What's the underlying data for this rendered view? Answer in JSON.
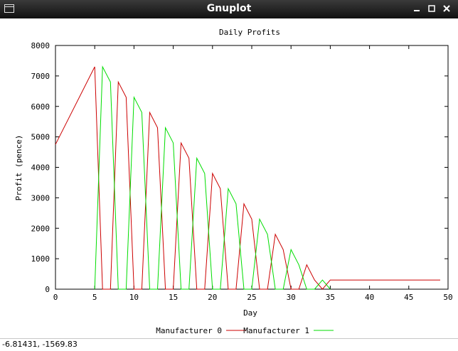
{
  "window": {
    "title": "Gnuplot",
    "controls": [
      {
        "name": "minimize",
        "icon": "minimize-icon"
      },
      {
        "name": "maximize",
        "icon": "maximize-icon"
      },
      {
        "name": "close",
        "icon": "close-icon"
      }
    ]
  },
  "status": {
    "coordinates": "-6.81431, -1569.83"
  },
  "chart_data": {
    "type": "line",
    "title": "Daily Profits",
    "xlabel": "Day",
    "ylabel": "Profit (pence)",
    "xlim": [
      0,
      50
    ],
    "ylim": [
      0,
      8000
    ],
    "xticks": [
      0,
      5,
      10,
      15,
      20,
      25,
      30,
      35,
      40,
      45,
      50
    ],
    "yticks": [
      0,
      1000,
      2000,
      3000,
      4000,
      5000,
      6000,
      7000,
      8000
    ],
    "grid": false,
    "legend_position": "bottom-center",
    "series": [
      {
        "name": "Manufacturer 0",
        "color": "#cc0000",
        "x": [
          0,
          5,
          6,
          7,
          8,
          9,
          10,
          11,
          12,
          13,
          14,
          15,
          16,
          17,
          18,
          19,
          20,
          21,
          22,
          23,
          24,
          25,
          26,
          27,
          28,
          29,
          30,
          31,
          32,
          33,
          34,
          35,
          40,
          45,
          49
        ],
        "y": [
          4750,
          7300,
          0,
          0,
          6800,
          6300,
          0,
          0,
          5800,
          5300,
          0,
          0,
          4800,
          4300,
          0,
          0,
          3800,
          3300,
          0,
          0,
          2800,
          2300,
          0,
          0,
          1800,
          1300,
          0,
          0,
          800,
          300,
          0,
          300,
          300,
          300,
          300
        ]
      },
      {
        "name": "Manufacturer 1",
        "color": "#00dd00",
        "x": [
          5,
          6,
          7,
          8,
          9,
          10,
          11,
          12,
          13,
          14,
          15,
          16,
          17,
          18,
          19,
          20,
          21,
          22,
          23,
          24,
          25,
          26,
          27,
          28,
          29,
          30,
          31,
          32,
          33,
          34,
          35
        ],
        "y": [
          0,
          7300,
          6800,
          0,
          0,
          6300,
          5800,
          0,
          0,
          5300,
          4800,
          0,
          0,
          4300,
          3800,
          0,
          0,
          3300,
          2800,
          0,
          0,
          2300,
          1800,
          0,
          0,
          1300,
          800,
          0,
          0,
          300,
          0
        ]
      }
    ]
  }
}
